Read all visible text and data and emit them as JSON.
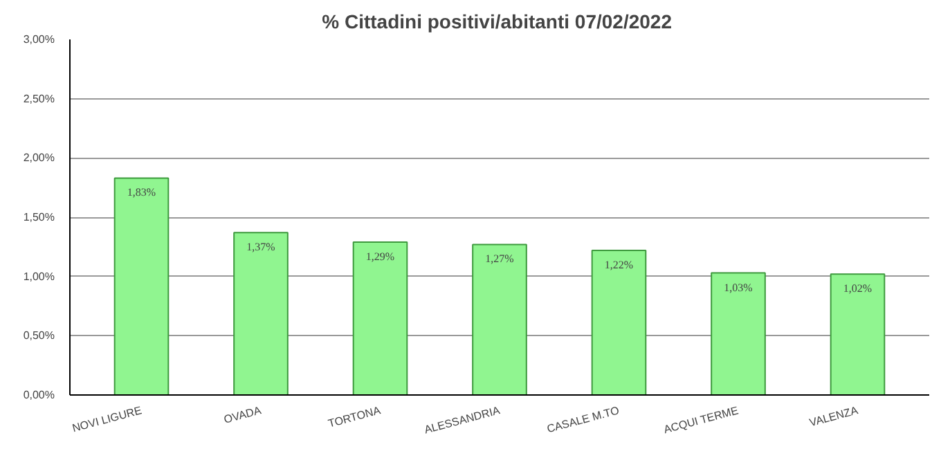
{
  "chart_data": {
    "type": "bar",
    "title": "% Cittadini positivi/abitanti  07/02/2022",
    "categories": [
      "NOVI LIGURE",
      "OVADA",
      "TORTONA",
      "ALESSANDRIA",
      "CASALE M.TO",
      "ACQUI TERME",
      "VALENZA"
    ],
    "values": [
      1.83,
      1.37,
      1.29,
      1.27,
      1.22,
      1.03,
      1.02
    ],
    "value_labels": [
      "1,83%",
      "1,37%",
      "1,29%",
      "1,27%",
      "1,22%",
      "1,03%",
      "1,02%"
    ],
    "color": "#90f590",
    "ylim": [
      0,
      3
    ],
    "yticks": [
      {
        "value": 0,
        "label": "0,00%"
      },
      {
        "value": 0.5,
        "label": "0,50%"
      },
      {
        "value": 1,
        "label": "1,00%"
      },
      {
        "value": 1.5,
        "label": "1,50%"
      },
      {
        "value": 2,
        "label": "2,00%"
      },
      {
        "value": 2.5,
        "label": "2,50%"
      },
      {
        "value": 3,
        "label": "3,00%"
      }
    ],
    "grid": "y"
  }
}
